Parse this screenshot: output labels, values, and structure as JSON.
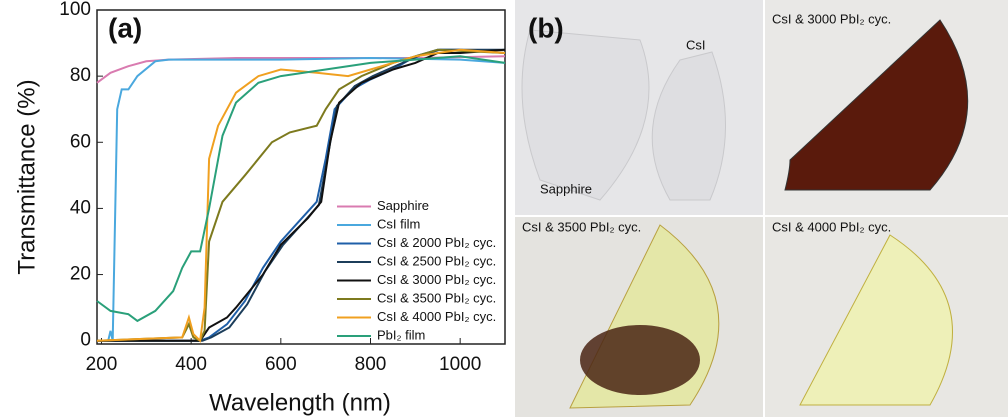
{
  "chart_data": {
    "type": "line",
    "annotation": "(a)",
    "xlabel": "Wavelength (nm)",
    "ylabel": "Transmittance (%)",
    "xlim": [
      190,
      1100
    ],
    "ylim": [
      -1,
      100
    ],
    "xticks": [
      200,
      400,
      600,
      800,
      1000
    ],
    "yticks": [
      0,
      20,
      40,
      60,
      80,
      100
    ],
    "grid": false,
    "legend": "lower-left",
    "series": [
      {
        "name": "Sapphire",
        "color": "#d97bb0",
        "x": [
          190,
          220,
          260,
          300,
          350,
          500,
          700,
          900,
          1100
        ],
        "values": [
          78,
          81,
          83,
          84.5,
          85,
          85.5,
          85.5,
          85.5,
          86
        ]
      },
      {
        "name": "CsI film",
        "color": "#4aa8de",
        "x": [
          190,
          215,
          220,
          225,
          235,
          245,
          260,
          280,
          320,
          350,
          600,
          800,
          1000,
          1100
        ],
        "values": [
          0,
          0,
          3,
          0,
          70,
          76,
          76,
          80,
          84.5,
          85,
          85,
          85.5,
          85,
          84
        ]
      },
      {
        "name": "CsI & 2000 PbI₂ cyc.",
        "color": "#1f5fa8",
        "x": [
          190,
          420,
          440,
          480,
          520,
          560,
          600,
          640,
          680,
          700,
          720,
          760,
          800,
          850,
          900,
          950,
          1000,
          1100
        ],
        "values": [
          0,
          0,
          1,
          5,
          12,
          22,
          30,
          36,
          42,
          55,
          70,
          76,
          79,
          82,
          86,
          88,
          88,
          87
        ]
      },
      {
        "name": "CsI & 2500 PbI₂ cyc.",
        "color": "#1c3d5a",
        "x": [
          190,
          425,
          445,
          485,
          525,
          565,
          605,
          645,
          685,
          705,
          725,
          765,
          805,
          855,
          905,
          955,
          1000,
          1100
        ],
        "values": [
          0,
          0,
          1,
          4,
          11,
          21,
          29,
          35,
          41,
          56,
          71,
          77,
          80,
          83,
          86,
          88,
          88,
          88
        ]
      },
      {
        "name": "CsI & 3000 PbI₂ cyc.",
        "color": "#111111",
        "x": [
          190,
          420,
          440,
          480,
          500,
          560,
          600,
          660,
          690,
          710,
          730,
          780,
          850,
          900,
          950,
          1000,
          1100
        ],
        "values": [
          0,
          0,
          4,
          7,
          10,
          20,
          29,
          37,
          42,
          60,
          72,
          78,
          82,
          84,
          87,
          87,
          88
        ]
      },
      {
        "name": "CsI & 3500 PbI₂ cyc.",
        "color": "#7d7a1e",
        "x": [
          190,
          380,
          395,
          405,
          420,
          430,
          440,
          470,
          520,
          580,
          620,
          680,
          700,
          730,
          780,
          850,
          950,
          1100
        ],
        "values": [
          0,
          1,
          5,
          1,
          0,
          3,
          30,
          42,
          50,
          60,
          63,
          65,
          70,
          76,
          80,
          84,
          88,
          87
        ]
      },
      {
        "name": "CsI & 4000 PbI₂ cyc.",
        "color": "#f0a020",
        "x": [
          190,
          380,
          395,
          405,
          420,
          430,
          440,
          460,
          500,
          550,
          600,
          680,
          750,
          800,
          900,
          1000,
          1100
        ],
        "values": [
          0,
          1,
          7,
          2,
          0,
          10,
          55,
          65,
          75,
          80,
          82,
          81,
          80,
          82,
          86,
          88,
          87
        ]
      },
      {
        "name": "PbI₂ film",
        "color": "#2aa07a",
        "x": [
          190,
          220,
          260,
          280,
          320,
          360,
          380,
          400,
          420,
          440,
          470,
          500,
          550,
          600,
          700,
          800,
          900,
          1000,
          1100
        ],
        "values": [
          12,
          9,
          8,
          6,
          9,
          15,
          22,
          27,
          27,
          40,
          62,
          72,
          78,
          80,
          82,
          84,
          85,
          86,
          84
        ]
      }
    ]
  },
  "photos": {
    "panel_label": "(b)",
    "labels": [
      "CsI",
      "Sapphire",
      "CsI & 3000 PbI₂ cyc.",
      "CsI & 3500 PbI₂ cyc.",
      "CsI & 4000 PbI₂ cyc."
    ]
  }
}
